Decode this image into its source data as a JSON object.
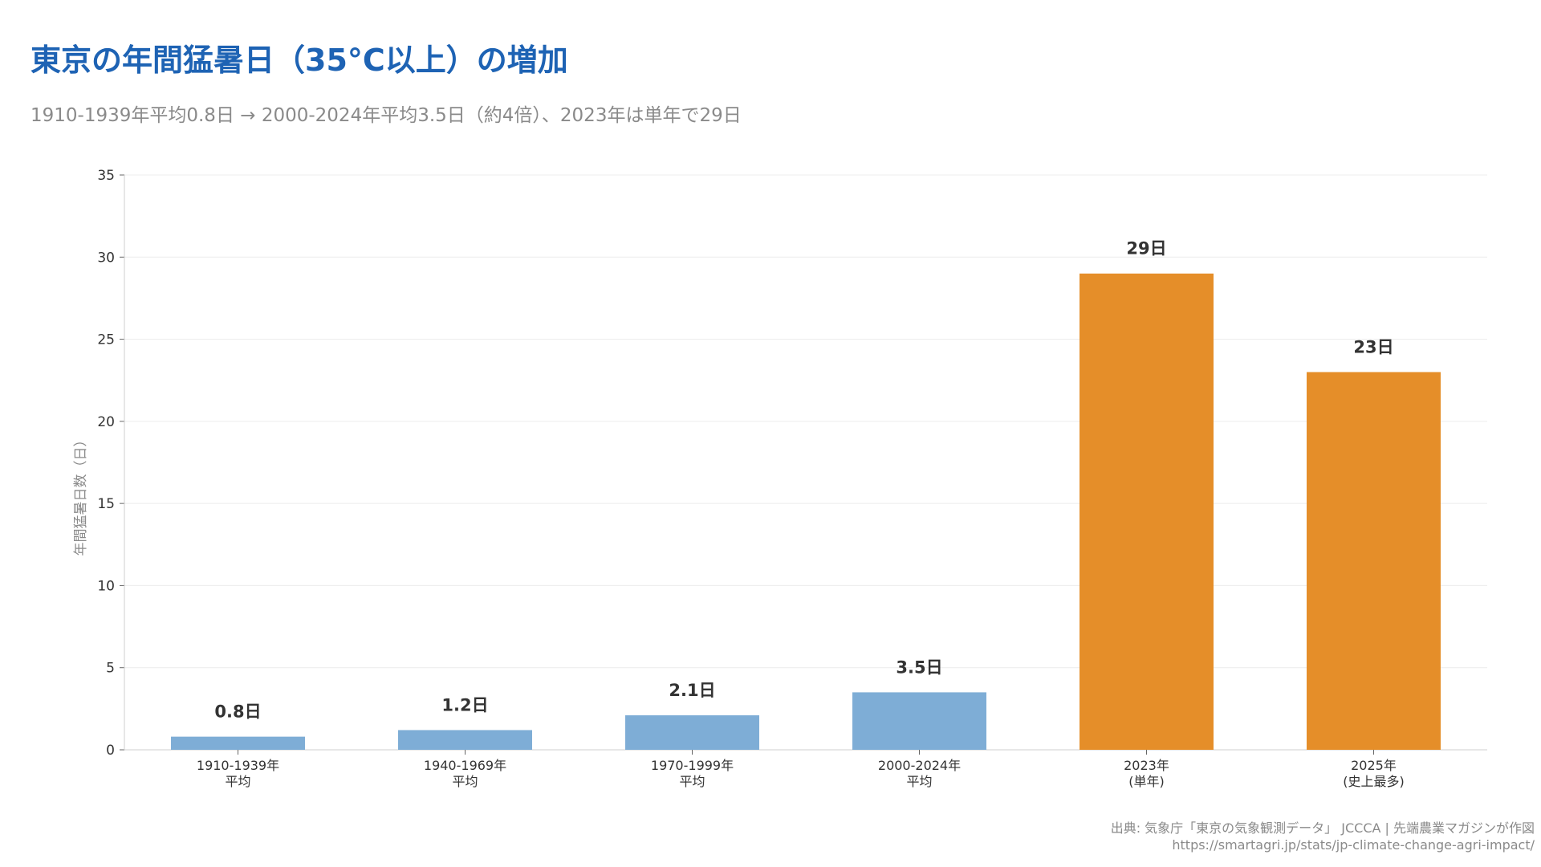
{
  "title": "東京の年間猛暑日（35°C以上）の増加",
  "subtitle": "1910-1939年平均0.8日 → 2000-2024年平均3.5日（約4倍）、2023年は単年で29日",
  "source": "出典: 気象庁「東京の気象観測データ」 JCCCA | 先端農業マガジンが作図",
  "url": "https://smartagri.jp/stats/jp-climate-change-agri-impact/",
  "colors": {
    "average": "#7eadd6",
    "single_year": "#e58e29",
    "title": "#1e63b4"
  },
  "chart_data": {
    "type": "bar",
    "ylabel": "年間猛暑日数（日）",
    "xlabel": "",
    "ylim": [
      0,
      35
    ],
    "yticks": [
      0,
      5,
      10,
      15,
      20,
      25,
      30,
      35
    ],
    "grid": true,
    "categories": [
      [
        "1910-1939年",
        "平均"
      ],
      [
        "1940-1969年",
        "平均"
      ],
      [
        "1970-1999年",
        "平均"
      ],
      [
        "2000-2024年",
        "平均"
      ],
      [
        "2023年",
        "(単年)"
      ],
      [
        "2025年",
        "(史上最多)"
      ]
    ],
    "values": [
      0.8,
      1.2,
      2.1,
      3.5,
      29,
      23
    ],
    "value_labels": [
      "0.8日",
      "1.2日",
      "2.1日",
      "3.5日",
      "29日",
      "23日"
    ],
    "bar_kind": [
      "average",
      "average",
      "average",
      "average",
      "single_year",
      "single_year"
    ]
  }
}
